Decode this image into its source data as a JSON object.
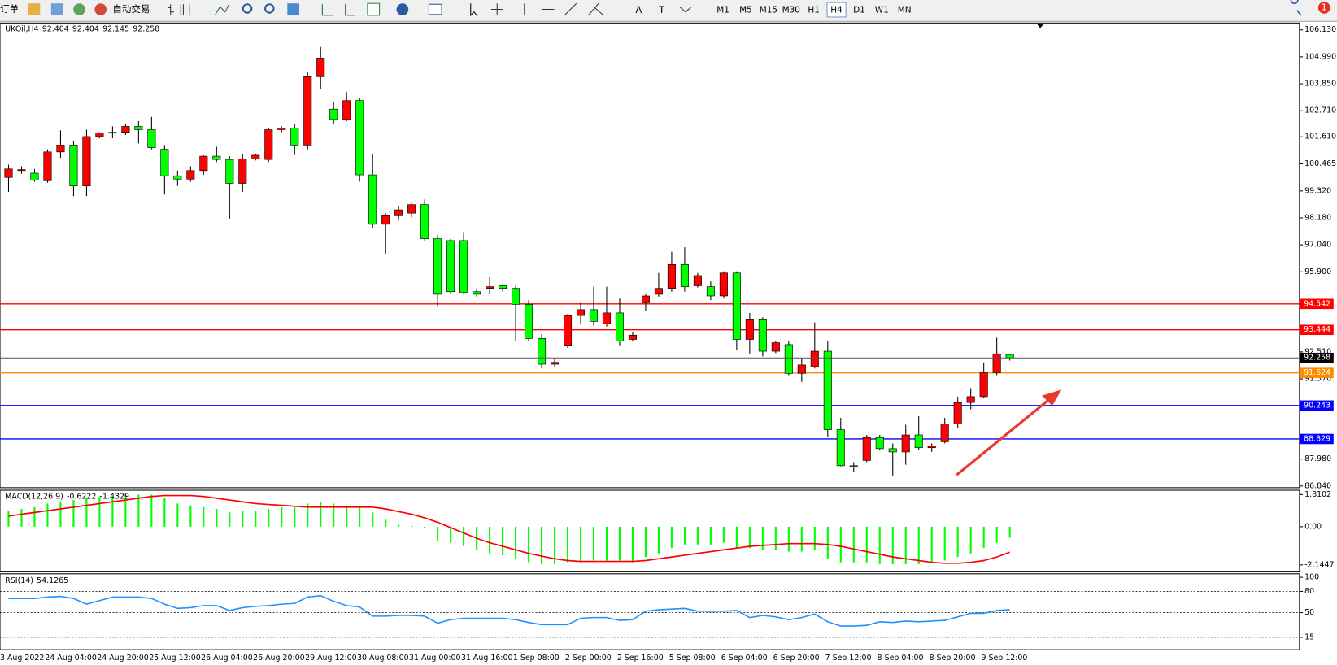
{
  "toolbar": {
    "order": "订单",
    "auto_trade": "自动交易",
    "tool_letters": [
      "A",
      "T"
    ],
    "timeframes": [
      "M1",
      "M5",
      "M15",
      "M30",
      "H1",
      "H4",
      "D1",
      "W1",
      "MN"
    ],
    "active_timeframe": "H4",
    "notifications": 1
  },
  "chart_data": [
    {
      "type": "candlestick",
      "title": "UKOil,H4",
      "categories": [
        "3 Aug 2022",
        null,
        null,
        "24 Aug 04:00",
        null,
        null,
        null,
        "24 Aug 20:00",
        null,
        null,
        null,
        "25 Aug 12:00",
        null,
        null,
        null,
        "26 Aug 04:00",
        null,
        null,
        null,
        "26 Aug 20:00",
        null,
        null,
        null,
        "29 Aug 12:00",
        null,
        null,
        null,
        "30 Aug 08:00",
        null,
        null,
        null,
        "31 Aug 00:00",
        null,
        null,
        null,
        "31 Aug 16:00",
        null,
        null,
        null,
        "1 Sep 08:00",
        null,
        null,
        null,
        "2 Sep 00:00",
        null,
        null,
        null,
        "2 Sep 16:00",
        null,
        null,
        null,
        "5 Sep 08:00",
        null,
        null,
        null,
        "6 Sep 04:00",
        null,
        null,
        null,
        "6 Sep 20:00",
        null,
        null,
        null,
        "7 Sep 12:00",
        null,
        null,
        null,
        "8 Sep 04:00",
        null,
        null,
        null,
        "8 Sep 20:00",
        null,
        null,
        null,
        "9 Sep 12:00",
        null,
        null
      ],
      "open": [
        99.89,
        100.18,
        100.07,
        99.75,
        100.97,
        101.26,
        99.53,
        101.62,
        101.77,
        101.8,
        102.05,
        101.91,
        101.08,
        99.96,
        99.82,
        100.18,
        100.79,
        100.65,
        99.64,
        100.68,
        100.65,
        101.91,
        101.98,
        101.26,
        104.15,
        102.78,
        102.34,
        103.14,
        100.0,
        97.91,
        98.27,
        98.38,
        98.74,
        97.3,
        97.22,
        97.22,
        95.06,
        95.2,
        95.31,
        95.2,
        94.52,
        93.08,
        91.99,
        92.79,
        94.05,
        94.3,
        93.69,
        94.16,
        93.04,
        94.59,
        94.95,
        95.2,
        96.21,
        95.31,
        95.27,
        94.88,
        95.85,
        93.04,
        93.87,
        92.54,
        92.82,
        91.6,
        91.89,
        92.54,
        89.22,
        87.7,
        87.92,
        88.89,
        88.42,
        88.28,
        89.0,
        88.46,
        88.71,
        89.47,
        90.37,
        90.62,
        91.63,
        92.404
      ],
      "high": [
        100.43,
        100.36,
        100.25,
        101.08,
        101.88,
        101.44,
        101.91,
        101.8,
        102.05,
        102.16,
        102.27,
        102.45,
        101.26,
        100.18,
        100.36,
        100.83,
        101.19,
        100.79,
        100.9,
        100.9,
        101.98,
        102.05,
        102.16,
        104.33,
        105.41,
        103.07,
        103.5,
        103.25,
        100.9,
        98.38,
        98.67,
        98.81,
        98.96,
        97.47,
        97.3,
        97.58,
        95.2,
        95.67,
        95.38,
        95.31,
        94.7,
        93.26,
        92.25,
        94.12,
        94.59,
        95.27,
        95.27,
        94.77,
        93.33,
        94.95,
        95.85,
        96.75,
        96.94,
        95.85,
        95.49,
        95.92,
        95.92,
        94.16,
        93.98,
        92.97,
        92.97,
        92.25,
        93.76,
        92.97,
        89.72,
        87.85,
        89.0,
        89.0,
        88.64,
        89.43,
        89.79,
        88.64,
        89.72,
        90.62,
        90.98,
        92.07,
        93.11,
        92.404
      ],
      "low": [
        99.28,
        100.04,
        99.71,
        99.67,
        100.72,
        99.1,
        99.1,
        101.55,
        101.55,
        101.69,
        101.33,
        101.08,
        99.17,
        99.53,
        99.71,
        100.0,
        100.54,
        98.12,
        99.28,
        100.61,
        100.54,
        101.8,
        100.83,
        101.08,
        103.61,
        102.16,
        102.27,
        99.71,
        97.73,
        96.65,
        98.09,
        98.2,
        97.22,
        94.41,
        94.95,
        94.95,
        94.85,
        94.95,
        95.06,
        92.97,
        92.97,
        91.81,
        91.89,
        92.68,
        93.69,
        93.62,
        93.58,
        92.79,
        92.97,
        94.23,
        94.85,
        95.06,
        95.06,
        95.24,
        94.7,
        94.77,
        92.61,
        92.43,
        92.32,
        92.46,
        91.53,
        91.24,
        91.81,
        88.93,
        87.67,
        87.45,
        87.85,
        88.35,
        87.27,
        87.74,
        88.35,
        88.28,
        88.64,
        89.29,
        90.08,
        90.55,
        91.53,
        92.145
      ],
      "close": [
        100.25,
        100.22,
        99.78,
        100.97,
        101.26,
        99.53,
        101.62,
        101.77,
        101.8,
        102.05,
        101.91,
        101.15,
        99.96,
        99.82,
        100.18,
        100.79,
        100.65,
        99.64,
        100.68,
        100.83,
        101.91,
        101.98,
        101.26,
        104.15,
        104.94,
        102.34,
        103.14,
        100.0,
        97.91,
        98.27,
        98.52,
        98.74,
        97.3,
        94.95,
        95.06,
        95.02,
        94.95,
        95.27,
        95.2,
        94.52,
        93.08,
        91.99,
        92.07,
        94.05,
        94.3,
        93.8,
        94.16,
        92.97,
        93.22,
        94.88,
        95.2,
        96.21,
        95.27,
        95.74,
        94.88,
        95.85,
        93.04,
        93.87,
        92.54,
        92.9,
        91.6,
        91.96,
        92.54,
        89.22,
        87.7,
        87.67,
        88.89,
        88.42,
        88.28,
        89.0,
        88.46,
        88.53,
        89.47,
        90.37,
        90.62,
        91.63,
        92.43,
        92.258
      ],
      "up_color": "#ff0000",
      "down_color": "#00ff00",
      "ylim": [
        86.77,
        106.42
      ],
      "yticks": [
        {
          "value": 106.13,
          "label": "106.130"
        },
        {
          "value": 104.99,
          "label": "104.990"
        },
        {
          "value": 103.85,
          "label": "103.850"
        },
        {
          "value": 102.71,
          "label": "102.710"
        },
        {
          "value": 101.61,
          "label": "101.610"
        },
        100.465,
        {
          "value": 99.32,
          "label": "99.320"
        },
        {
          "value": 98.18,
          "label": "98.180"
        },
        {
          "value": 97.04,
          "label": "97.040"
        },
        {
          "value": 95.9,
          "label": "95.900"
        },
        {
          "value": 92.51,
          "label": "92.510"
        },
        {
          "value": 91.37,
          "label": "91.370"
        },
        {
          "value": 87.98,
          "label": "87.980"
        },
        {
          "value": 86.84,
          "label": "86.840"
        }
      ],
      "levels": [
        {
          "value": 94.542,
          "color": "#ff0000"
        },
        {
          "value": 93.444,
          "color": "#ff0000"
        },
        {
          "value": 91.624,
          "color": "#ff8c00"
        },
        {
          "value": 90.243,
          "color": "#0000ff"
        },
        {
          "value": 88.829,
          "color": "#0000ff"
        }
      ]
    },
    {
      "type": "macd",
      "title": "MACD(12,26,9)",
      "series": [
        {
          "kind": "histogram",
          "color": "#00ff00",
          "values": [
            0.9,
            1.0,
            1.1,
            1.3,
            1.4,
            1.5,
            1.6,
            1.7,
            1.7,
            1.8,
            1.8,
            1.8,
            1.6,
            1.3,
            1.2,
            1.1,
            1.0,
            0.8,
            0.9,
            0.9,
            1.0,
            1.1,
            1.1,
            1.3,
            1.4,
            1.3,
            1.2,
            1.1,
            0.8,
            0.4,
            0.1,
            0.05,
            -0.1,
            -0.8,
            -0.9,
            -1.1,
            -1.3,
            -1.5,
            -1.6,
            -1.8,
            -2.0,
            -2.1,
            -2.1,
            -2.0,
            -2.0,
            -1.9,
            -1.9,
            -1.9,
            -2.0,
            -1.7,
            -1.5,
            -1.2,
            -1.0,
            -1.0,
            -1.0,
            -0.9,
            -1.2,
            -1.2,
            -1.3,
            -1.3,
            -1.4,
            -1.4,
            -1.3,
            -1.8,
            -2.0,
            -2.0,
            -2.0,
            -2.1,
            -2.1,
            -2.1,
            -2.1,
            -2.0,
            -1.9,
            -1.7,
            -1.5,
            -1.2,
            -0.9,
            -0.6222
          ]
        },
        {
          "kind": "line",
          "color": "#ff0000",
          "values": [
            0.6,
            0.7,
            0.8,
            0.9,
            1.0,
            1.1,
            1.2,
            1.3,
            1.4,
            1.5,
            1.6,
            1.7,
            1.75,
            1.75,
            1.75,
            1.7,
            1.6,
            1.5,
            1.4,
            1.3,
            1.25,
            1.2,
            1.15,
            1.1,
            1.1,
            1.1,
            1.1,
            1.1,
            1.1,
            1.0,
            0.85,
            0.7,
            0.5,
            0.25,
            -0.05,
            -0.35,
            -0.65,
            -0.9,
            -1.1,
            -1.3,
            -1.5,
            -1.65,
            -1.8,
            -1.9,
            -1.95,
            -1.95,
            -1.95,
            -1.95,
            -1.95,
            -1.9,
            -1.8,
            -1.7,
            -1.6,
            -1.5,
            -1.4,
            -1.3,
            -1.2,
            -1.1,
            -1.05,
            -1.0,
            -0.95,
            -0.95,
            -0.95,
            -1.0,
            -1.1,
            -1.25,
            -1.4,
            -1.55,
            -1.7,
            -1.8,
            -1.9,
            -2.0,
            -2.05,
            -2.05,
            -2.0,
            -1.9,
            -1.7,
            -1.4329
          ]
        }
      ],
      "ylim": [
        -2.5,
        2.05
      ],
      "yticks": [
        1.8102,
        {
          "value": 0,
          "label": "0.00"
        },
        -2.1447
      ]
    },
    {
      "type": "line",
      "title": "RSI(14)",
      "color": "#1e90ff",
      "values": [
        70,
        70,
        70,
        72,
        73,
        70,
        62,
        67,
        72,
        72,
        72,
        70,
        62,
        56,
        57,
        60,
        60,
        53,
        57,
        59,
        60,
        62,
        63,
        72,
        74,
        66,
        60,
        58,
        45,
        45,
        46,
        46,
        45,
        35,
        40,
        42,
        42,
        42,
        42,
        40,
        36,
        33,
        33,
        33,
        42,
        43,
        43,
        39,
        40,
        52,
        54,
        55,
        56,
        52,
        52,
        52,
        53,
        43,
        46,
        44,
        40,
        43,
        48,
        37,
        31,
        31,
        32,
        37,
        36,
        38,
        37,
        38,
        39,
        44,
        49,
        49,
        53,
        54.1265
      ],
      "ylim": [
        -2.5,
        105
      ],
      "yticks": [
        100,
        80,
        50,
        15
      ],
      "levels": [
        80,
        50,
        15
      ]
    }
  ]
}
